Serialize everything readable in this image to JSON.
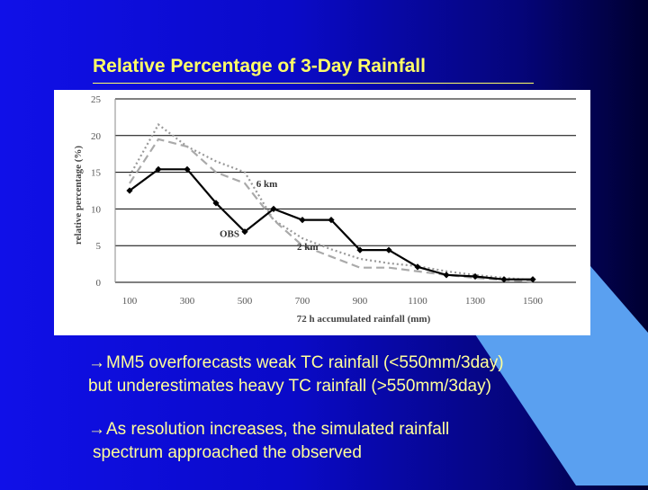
{
  "slide": {
    "title": "Relative Percentage of 3-Day Rainfall",
    "bullets": [
      {
        "arrow": "→",
        "line1": "MM5 overforecasts weak TC rainfall (<550mm/3day)",
        "line2": "but underestimates heavy TC rainfall (>550mm/3day)"
      },
      {
        "arrow": "→",
        "line1": "As resolution increases, the simulated rainfall",
        "line2": "spectrum approached the observed"
      }
    ],
    "colors": {
      "background": "#1010e8",
      "title_text": "#ffff66",
      "bullet_text": "#ffff99",
      "accent_light": "#5aa0f0"
    }
  },
  "chart_data": {
    "type": "line",
    "xlabel": "72 h accumulated rainfall (mm)",
    "ylabel": "relative percentage (%)",
    "ylim": [
      0,
      25
    ],
    "yticks": [
      0,
      5,
      10,
      15,
      20,
      25
    ],
    "xtick_labels": [
      "100",
      "300",
      "500",
      "700",
      "900",
      "1100",
      "1300",
      "1500"
    ],
    "xtick_values": [
      100,
      300,
      500,
      700,
      900,
      1100,
      1300,
      1500
    ],
    "grid": "horizontal",
    "x": [
      100,
      200,
      300,
      400,
      500,
      600,
      700,
      800,
      900,
      1000,
      1100,
      1200,
      1300,
      1400,
      1500
    ],
    "series": [
      {
        "name": "OBS",
        "style": "solid-diamond",
        "color": "#000000",
        "values": [
          12.5,
          15.4,
          15.4,
          10.8,
          6.9,
          10.0,
          8.5,
          8.5,
          4.4,
          4.4,
          2.1,
          1.0,
          0.8,
          0.4,
          0.4
        ]
      },
      {
        "name": "6 km",
        "style": "dotted",
        "color": "#999999",
        "values": [
          14.5,
          21.5,
          18.5,
          16.5,
          15.0,
          8.5,
          6.0,
          4.5,
          3.2,
          2.6,
          2.2,
          1.5,
          1.0,
          0.6,
          0.3
        ]
      },
      {
        "name": "2 km",
        "style": "dashed",
        "color": "#aaaaaa",
        "values": [
          13.5,
          19.5,
          18.5,
          15.0,
          13.5,
          8.5,
          5.0,
          3.5,
          2.0,
          2.0,
          1.5,
          1.0,
          0.6,
          0.3,
          0.1
        ]
      }
    ],
    "annotations": [
      "OBS",
      "6 km",
      "2 km"
    ]
  }
}
